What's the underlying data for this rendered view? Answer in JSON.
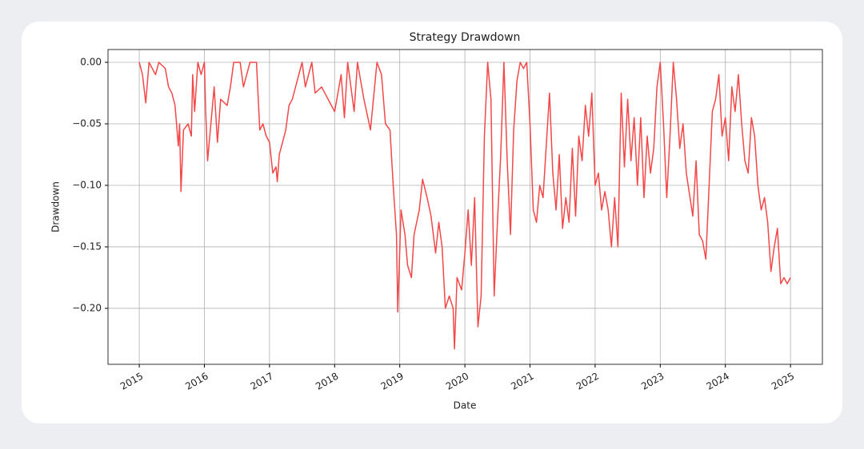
{
  "chart_data": {
    "type": "line",
    "title": "Strategy Drawdown",
    "xlabel": "Date",
    "ylabel": "Drawdown",
    "x": [
      2015.0,
      2015.05,
      2015.1,
      2015.15,
      2015.25,
      2015.3,
      2015.4,
      2015.45,
      2015.5,
      2015.55,
      2015.6,
      2015.62,
      2015.64,
      2015.68,
      2015.75,
      2015.8,
      2015.82,
      2015.85,
      2015.9,
      2015.95,
      2016.0,
      2016.02,
      2016.05,
      2016.1,
      2016.15,
      2016.2,
      2016.25,
      2016.35,
      2016.4,
      2016.45,
      2016.55,
      2016.6,
      2016.65,
      2016.7,
      2016.8,
      2016.85,
      2016.9,
      2016.95,
      2017.0,
      2017.05,
      2017.1,
      2017.12,
      2017.15,
      2017.2,
      2017.25,
      2017.3,
      2017.35,
      2017.45,
      2017.5,
      2017.55,
      2017.6,
      2017.65,
      2017.7,
      2017.8,
      2017.9,
      2018.0,
      2018.05,
      2018.1,
      2018.15,
      2018.2,
      2018.3,
      2018.35,
      2018.45,
      2018.55,
      2018.65,
      2018.72,
      2018.78,
      2018.85,
      2018.9,
      2018.95,
      2018.97,
      2019.02,
      2019.08,
      2019.12,
      2019.18,
      2019.22,
      2019.3,
      2019.35,
      2019.42,
      2019.48,
      2019.55,
      2019.6,
      2019.65,
      2019.7,
      2019.76,
      2019.82,
      2019.84,
      2019.88,
      2019.95,
      2020.0,
      2020.05,
      2020.1,
      2020.15,
      2020.2,
      2020.25,
      2020.3,
      2020.35,
      2020.4,
      2020.45,
      2020.5,
      2020.55,
      2020.6,
      2020.65,
      2020.7,
      2020.75,
      2020.8,
      2020.85,
      2020.9,
      2020.95,
      2021.0,
      2021.05,
      2021.1,
      2021.15,
      2021.2,
      2021.3,
      2021.35,
      2021.4,
      2021.45,
      2021.5,
      2021.55,
      2021.6,
      2021.65,
      2021.7,
      2021.75,
      2021.8,
      2021.85,
      2021.9,
      2021.95,
      2022.0,
      2022.05,
      2022.1,
      2022.15,
      2022.2,
      2022.25,
      2022.3,
      2022.35,
      2022.4,
      2022.45,
      2022.5,
      2022.55,
      2022.6,
      2022.65,
      2022.7,
      2022.75,
      2022.8,
      2022.85,
      2022.9,
      2022.95,
      2023.0,
      2023.05,
      2023.1,
      2023.15,
      2023.2,
      2023.25,
      2023.3,
      2023.35,
      2023.4,
      2023.5,
      2023.55,
      2023.6,
      2023.65,
      2023.7,
      2023.75,
      2023.8,
      2023.85,
      2023.9,
      2023.95,
      2024.0,
      2024.05,
      2024.1,
      2024.15,
      2024.2,
      2024.25,
      2024.3,
      2024.35,
      2024.4,
      2024.45,
      2024.5,
      2024.55,
      2024.6,
      2024.65,
      2024.7,
      2024.75,
      2024.8,
      2024.85,
      2024.9,
      2024.95,
      2025.0
    ],
    "values": [
      0,
      -0.01,
      -0.033,
      0,
      -0.01,
      0,
      -0.005,
      -0.02,
      -0.025,
      -0.035,
      -0.068,
      -0.05,
      -0.105,
      -0.055,
      -0.05,
      -0.06,
      -0.01,
      -0.04,
      0,
      -0.01,
      0,
      -0.04,
      -0.08,
      -0.05,
      -0.02,
      -0.065,
      -0.03,
      -0.035,
      -0.02,
      0,
      0,
      -0.02,
      -0.01,
      0,
      0,
      -0.055,
      -0.05,
      -0.06,
      -0.065,
      -0.09,
      -0.085,
      -0.097,
      -0.075,
      -0.065,
      -0.055,
      -0.035,
      -0.03,
      -0.01,
      0,
      -0.02,
      -0.01,
      0,
      -0.025,
      -0.02,
      -0.03,
      -0.04,
      -0.025,
      -0.01,
      -0.045,
      0,
      -0.04,
      0,
      -0.03,
      -0.055,
      0,
      -0.01,
      -0.05,
      -0.055,
      -0.1,
      -0.14,
      -0.203,
      -0.12,
      -0.14,
      -0.165,
      -0.175,
      -0.14,
      -0.12,
      -0.095,
      -0.11,
      -0.125,
      -0.155,
      -0.13,
      -0.15,
      -0.2,
      -0.19,
      -0.2,
      -0.233,
      -0.175,
      -0.185,
      -0.155,
      -0.12,
      -0.165,
      -0.11,
      -0.215,
      -0.19,
      -0.06,
      0,
      -0.03,
      -0.19,
      -0.13,
      -0.075,
      0,
      -0.08,
      -0.14,
      -0.055,
      -0.015,
      0,
      -0.005,
      0,
      -0.05,
      -0.12,
      -0.13,
      -0.1,
      -0.11,
      -0.025,
      -0.09,
      -0.12,
      -0.075,
      -0.135,
      -0.11,
      -0.13,
      -0.07,
      -0.125,
      -0.06,
      -0.08,
      -0.035,
      -0.06,
      -0.025,
      -0.1,
      -0.09,
      -0.12,
      -0.105,
      -0.12,
      -0.15,
      -0.11,
      -0.15,
      -0.025,
      -0.085,
      -0.03,
      -0.08,
      -0.045,
      -0.1,
      -0.045,
      -0.11,
      -0.06,
      -0.09,
      -0.07,
      -0.02,
      0,
      -0.05,
      -0.11,
      -0.06,
      0,
      -0.03,
      -0.07,
      -0.05,
      -0.09,
      -0.125,
      -0.08,
      -0.14,
      -0.145,
      -0.16,
      -0.1,
      -0.04,
      -0.03,
      -0.01,
      -0.06,
      -0.045,
      -0.08,
      -0.02,
      -0.04,
      -0.01,
      -0.05,
      -0.08,
      -0.09,
      -0.045,
      -0.06,
      -0.1,
      -0.12,
      -0.11,
      -0.13,
      -0.17,
      -0.15,
      -0.135,
      -0.18,
      -0.175,
      -0.18,
      -0.175
    ],
    "color": "#f44848",
    "xlim": [
      2014.52,
      2025.49
    ],
    "xticks": [
      2015,
      2016,
      2017,
      2018,
      2019,
      2020,
      2021,
      2022,
      2023,
      2024,
      2025
    ],
    "ylim": [
      -0.2455,
      0.0104
    ],
    "yticks": [
      {
        "value": 0,
        "label": "0.00"
      },
      {
        "value": -0.05,
        "label": "−0.05"
      },
      {
        "value": -0.1,
        "label": "−0.10"
      },
      {
        "value": -0.15,
        "label": "−0.15"
      },
      {
        "value": -0.2,
        "label": "−0.20"
      }
    ],
    "grid": true
  }
}
